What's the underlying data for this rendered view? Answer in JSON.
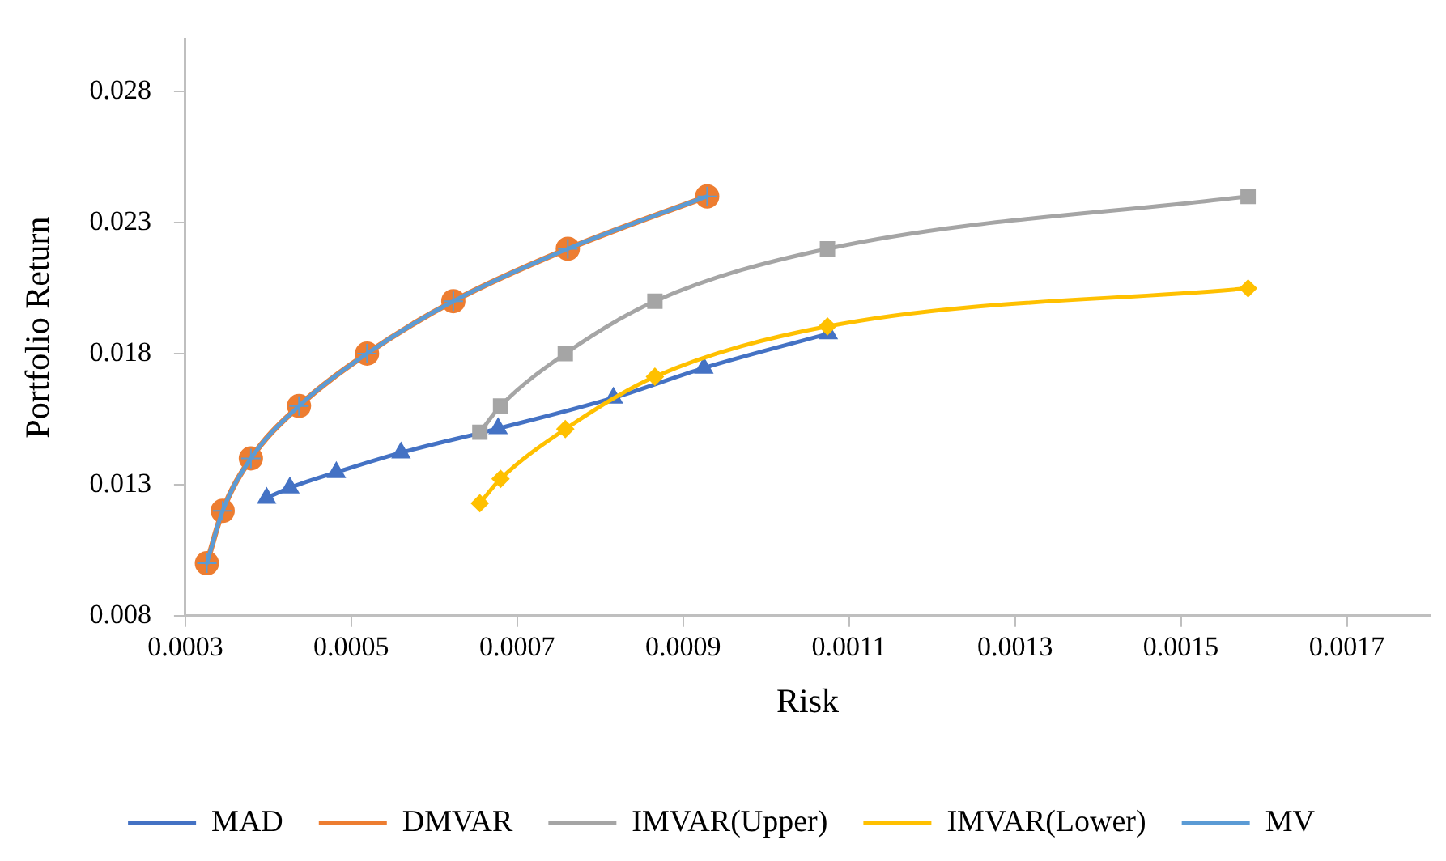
{
  "chart_data": {
    "type": "line",
    "xlabel": "Risk",
    "ylabel": "Portfolio Return",
    "xlim": [
      0.0003,
      0.0018
    ],
    "xticks": [
      0.0003,
      0.0005,
      0.0007,
      0.0009,
      0.0011,
      0.0013,
      0.0015,
      0.0017
    ],
    "ylim": [
      0.008,
      0.03
    ],
    "yticks": [
      0.008,
      0.013,
      0.018,
      0.023,
      0.028
    ],
    "grid": false,
    "legend": "bottom",
    "line_style": "solid",
    "series": [
      {
        "name": "MAD",
        "color": "#4472c4",
        "marker": "triangle",
        "x": [
          0.000398,
          0.000426,
          0.000482,
          0.00056,
          0.000677,
          0.000816,
          0.000925,
          0.001075
        ],
        "values": [
          0.01249,
          0.01288,
          0.01347,
          0.01422,
          0.01514,
          0.01631,
          0.01745,
          0.01876
        ]
      },
      {
        "name": "DMVAR",
        "color": "#ed7d31",
        "marker": "circle",
        "x": [
          0.000326,
          0.000345,
          0.000379,
          0.000437,
          0.000519,
          0.000623,
          0.000761,
          0.000929
        ],
        "values": [
          0.01,
          0.012,
          0.014,
          0.016,
          0.018,
          0.02,
          0.022,
          0.024
        ]
      },
      {
        "name": "IMVAR(Upper)",
        "color": "#a5a5a5",
        "marker": "square",
        "x": [
          0.000655,
          0.00068,
          0.000758,
          0.000866,
          0.001074,
          0.001581
        ],
        "values": [
          0.015,
          0.016,
          0.018,
          0.02,
          0.022,
          0.024
        ]
      },
      {
        "name": "IMVAR(Lower)",
        "color": "#ffc000",
        "marker": "diamond",
        "x": [
          0.000655,
          0.00068,
          0.000758,
          0.000866,
          0.001074,
          0.001581
        ],
        "values": [
          0.01229,
          0.01322,
          0.01512,
          0.01712,
          0.01904,
          0.02049
        ]
      },
      {
        "name": "MV",
        "color": "#5b9bd5",
        "marker": "cross",
        "x": [
          0.000326,
          0.000345,
          0.000379,
          0.000437,
          0.000519,
          0.000623,
          0.000761,
          0.000929
        ],
        "values": [
          0.01,
          0.012,
          0.014,
          0.016,
          0.018,
          0.02,
          0.022,
          0.024
        ]
      }
    ]
  }
}
